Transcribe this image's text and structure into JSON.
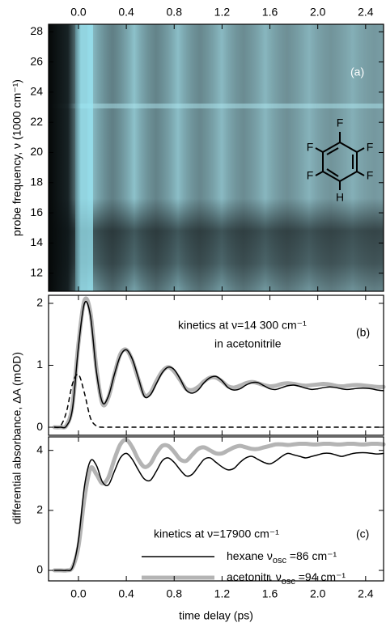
{
  "chart_data": [
    {
      "type": "heatmap",
      "annotations": [
        "(a)"
      ],
      "structure_labels": [
        "F",
        "F",
        "F",
        "F",
        "F",
        "H"
      ],
      "ylabel": "probe frequency,  ν  (1000 cm⁻¹)",
      "xlim": [
        -0.25,
        2.55
      ],
      "xticks": [
        {
          "value": 0,
          "label": "0.0"
        },
        0.4,
        0.8,
        1.2,
        1.6,
        {
          "value": 2,
          "label": "2.0"
        },
        2.4
      ],
      "ylim": [
        10.8,
        28.5
      ],
      "yticks": [
        12,
        14,
        16,
        18,
        20,
        22,
        24,
        26,
        28
      ]
    },
    {
      "type": "line",
      "annotations": [
        "kinetics at ν=14 300 cm⁻¹",
        "in acetonitrile",
        "(b)"
      ],
      "ylabel": "differential absorbance,  ΔA  (mOD)",
      "xlim": [
        -0.25,
        2.55
      ],
      "xticks": [
        0,
        0.4,
        0.8,
        1.2,
        1.6,
        2,
        2.4
      ],
      "ylim": [
        -0.13,
        2.13
      ],
      "yticks": [
        0,
        1,
        2
      ],
      "x": [
        -0.2,
        -0.15,
        -0.1,
        -0.05,
        0,
        0.05,
        0.1,
        0.15,
        0.2,
        0.25,
        0.3,
        0.35,
        0.4,
        0.45,
        0.5,
        0.55,
        0.6,
        0.65,
        0.7,
        0.75,
        0.8,
        0.85,
        0.9,
        0.95,
        1,
        1.05,
        1.1,
        1.15,
        1.2,
        1.25,
        1.3,
        1.35,
        1.4,
        1.45,
        1.5,
        1.55,
        1.6,
        1.65,
        1.7,
        1.75,
        1.8,
        1.85,
        1.9,
        1.95,
        2,
        2.05,
        2.1,
        2.15,
        2.2,
        2.25,
        2.3,
        2.35,
        2.4,
        2.45,
        2.5,
        2.55
      ],
      "series": [
        {
          "color": "#b4b4b4",
          "linewidth": 5,
          "values": [
            0,
            0,
            0.03,
            0.35,
            1.35,
            2.05,
            1.85,
            0.95,
            0.38,
            0.48,
            0.85,
            1.18,
            1.25,
            1.08,
            0.78,
            0.52,
            0.55,
            0.74,
            0.9,
            0.97,
            0.9,
            0.76,
            0.62,
            0.6,
            0.65,
            0.74,
            0.8,
            0.8,
            0.74,
            0.66,
            0.64,
            0.67,
            0.71,
            0.73,
            0.71,
            0.68,
            0.66,
            0.67,
            0.7,
            0.71,
            0.7,
            0.68,
            0.67,
            0.68,
            0.69,
            0.7,
            0.69,
            0.67,
            0.66,
            0.67,
            0.68,
            0.68,
            0.67,
            0.66,
            0.65,
            0.65
          ]
        },
        {
          "color": "#000000",
          "linewidth": 1.5,
          "values": [
            0,
            0,
            0.02,
            0.3,
            1.3,
            2.0,
            1.8,
            0.9,
            0.4,
            0.5,
            0.85,
            1.15,
            1.25,
            1.1,
            0.8,
            0.5,
            0.52,
            0.7,
            0.88,
            0.97,
            0.93,
            0.78,
            0.6,
            0.55,
            0.6,
            0.72,
            0.8,
            0.82,
            0.75,
            0.64,
            0.6,
            0.62,
            0.68,
            0.72,
            0.72,
            0.67,
            0.62,
            0.61,
            0.64,
            0.67,
            0.68,
            0.66,
            0.63,
            0.61,
            0.62,
            0.64,
            0.65,
            0.64,
            0.62,
            0.61,
            0.62,
            0.63,
            0.63,
            0.62,
            0.6,
            0.59
          ]
        },
        {
          "color": "#000000",
          "linewidth": 1.5,
          "style": "dashed",
          "values": [
            0,
            0.02,
            0.25,
            0.7,
            0.85,
            0.55,
            0.15,
            0.02,
            0,
            0,
            0,
            0,
            0,
            0,
            0,
            0,
            0,
            0,
            0,
            0,
            0,
            0,
            0,
            0,
            0,
            0,
            0,
            0,
            0,
            0,
            0,
            0,
            0,
            0,
            0,
            0,
            0,
            0,
            0,
            0,
            0,
            0,
            0,
            0,
            0,
            0,
            0,
            0,
            0,
            0,
            0,
            0,
            0,
            0,
            0,
            0
          ]
        }
      ]
    },
    {
      "type": "line",
      "annotations": [
        "kinetics at ν=17900 cm⁻¹",
        "(c)"
      ],
      "xlabel": "time delay (ps)",
      "xlim": [
        -0.25,
        2.55
      ],
      "xticks": [
        {
          "value": 0,
          "label": "0.0"
        },
        0.4,
        0.8,
        1.2,
        1.6,
        {
          "value": 2,
          "label": "2.0"
        },
        2.4
      ],
      "ylim": [
        -0.35,
        4.45
      ],
      "yticks": [
        0,
        2,
        4
      ],
      "x": [
        -0.2,
        -0.15,
        -0.1,
        -0.05,
        0,
        0.05,
        0.1,
        0.15,
        0.2,
        0.25,
        0.3,
        0.35,
        0.4,
        0.45,
        0.5,
        0.55,
        0.6,
        0.65,
        0.7,
        0.75,
        0.8,
        0.85,
        0.9,
        0.95,
        1,
        1.05,
        1.1,
        1.15,
        1.2,
        1.25,
        1.3,
        1.35,
        1.4,
        1.45,
        1.5,
        1.55,
        1.6,
        1.65,
        1.7,
        1.75,
        1.8,
        1.85,
        1.9,
        1.95,
        2,
        2.05,
        2.1,
        2.15,
        2.2,
        2.25,
        2.3,
        2.35,
        2.4,
        2.45,
        2.5,
        2.55
      ],
      "series": [
        {
          "name": "hexane  νosc =86 cm⁻¹",
          "color": "#000000",
          "linewidth": 1.5,
          "values": [
            0,
            0,
            0,
            0.1,
            1.0,
            2.8,
            3.65,
            3.5,
            2.95,
            2.85,
            3.3,
            3.75,
            3.9,
            3.7,
            3.35,
            3.05,
            3.0,
            3.3,
            3.65,
            3.75,
            3.6,
            3.35,
            3.15,
            3.2,
            3.45,
            3.7,
            3.75,
            3.6,
            3.45,
            3.35,
            3.4,
            3.6,
            3.75,
            3.8,
            3.7,
            3.6,
            3.55,
            3.65,
            3.8,
            3.9,
            3.85,
            3.8,
            3.75,
            3.8,
            3.85,
            3.9,
            3.9,
            3.85,
            3.8,
            3.85,
            3.9,
            3.92,
            3.92,
            3.9,
            3.88,
            3.9
          ]
        },
        {
          "name": "acetonitr.  νosc =94 cm⁻¹",
          "color": "#b4b4b4",
          "linewidth": 5,
          "values": [
            0,
            0,
            0,
            0.1,
            0.8,
            2.4,
            3.4,
            3.2,
            2.9,
            3.1,
            3.7,
            4.2,
            4.35,
            4.1,
            3.7,
            3.45,
            3.55,
            3.9,
            4.15,
            4.15,
            3.95,
            3.7,
            3.65,
            3.85,
            4.05,
            4.1,
            4.0,
            3.9,
            3.9,
            4.0,
            4.1,
            4.15,
            4.1,
            4.05,
            4.05,
            4.1,
            4.15,
            4.2,
            4.2,
            4.18,
            4.2,
            4.22,
            4.22,
            4.2,
            4.2,
            4.22,
            4.22,
            4.2,
            4.2,
            4.22,
            4.22,
            4.2,
            4.2,
            4.22,
            4.22,
            4.2
          ]
        }
      ]
    }
  ]
}
